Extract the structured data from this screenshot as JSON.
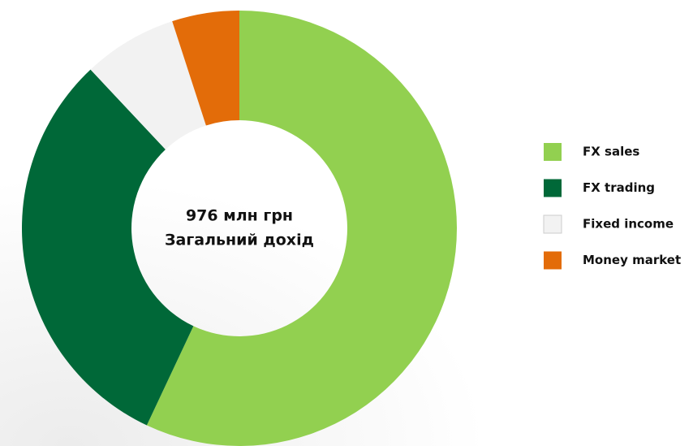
{
  "chart_data": {
    "type": "donut",
    "center_label": [
      "976 млн грн",
      "Загальний дохід"
    ],
    "categories": [
      "FX sales",
      "FX trading",
      "Fixed income",
      "Money market"
    ],
    "values": [
      57,
      31,
      7,
      5
    ],
    "colors": [
      "#92d050",
      "#006838",
      "#f2f2f2",
      "#e36c09"
    ],
    "legend": "right"
  }
}
